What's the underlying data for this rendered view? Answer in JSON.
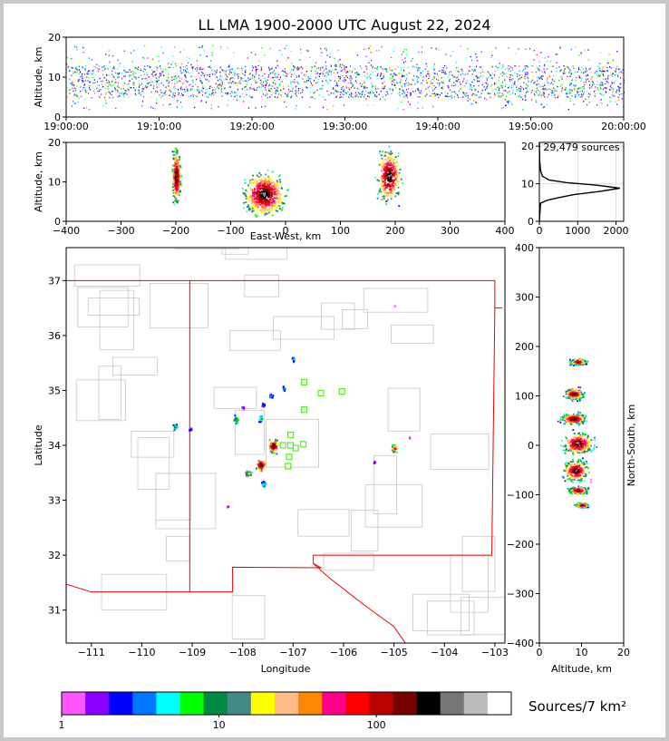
{
  "chart_data": {
    "title": "LL LMA 1900-2000 UTC August 22, 2024",
    "panels": [
      {
        "id": "altitude-time",
        "type": "scatter",
        "xlabel": "",
        "ylabel": "Altitude, km",
        "xticks": [
          "19:00:00",
          "19:10:00",
          "19:20:00",
          "19:30:00",
          "19:40:00",
          "19:50:00",
          "20:00:00"
        ],
        "xlim_minutes": [
          0,
          60
        ],
        "ylim": [
          0,
          20
        ],
        "yticks": [
          0,
          10,
          20
        ],
        "typical_altitude_km": [
          5,
          13
        ]
      },
      {
        "id": "altitude-eastwest",
        "type": "scatter",
        "xlabel": "East-West, km",
        "ylabel": "Altitude, km",
        "xlim": [
          -400,
          400
        ],
        "xticks": [
          -400,
          -300,
          -200,
          -100,
          0,
          100,
          200,
          300,
          400
        ],
        "ylim": [
          0,
          20
        ],
        "yticks": [
          0,
          10,
          20
        ],
        "clusters": [
          {
            "x": [
              -210,
              -190
            ],
            "y": [
              3,
              20
            ]
          },
          {
            "x": [
              -90,
              10
            ],
            "y": [
              0,
              14
            ]
          },
          {
            "x": [
              160,
              215
            ],
            "y": [
              3,
              20
            ]
          }
        ]
      },
      {
        "id": "altitude-histogram",
        "type": "line",
        "annotation": "29,479 sources",
        "xlim": [
          0,
          2200
        ],
        "xticks": [
          0,
          1000,
          2000
        ],
        "ylim": [
          0,
          21
        ],
        "yticks": [
          0,
          10,
          20
        ],
        "profile": [
          {
            "count": 0,
            "alt": 0
          },
          {
            "count": 30,
            "alt": 4.8
          },
          {
            "count": 200,
            "alt": 5.6
          },
          {
            "count": 500,
            "alt": 6.3
          },
          {
            "count": 900,
            "alt": 7.1
          },
          {
            "count": 1600,
            "alt": 8.0
          },
          {
            "count": 2100,
            "alt": 8.8
          },
          {
            "count": 1500,
            "alt": 9.6
          },
          {
            "count": 700,
            "alt": 10.3
          },
          {
            "count": 250,
            "alt": 11.0
          },
          {
            "count": 80,
            "alt": 12.0
          },
          {
            "count": 30,
            "alt": 13.5
          },
          {
            "count": 10,
            "alt": 16
          },
          {
            "count": 0,
            "alt": 21
          }
        ]
      },
      {
        "id": "plan-view",
        "type": "scatter",
        "xlabel": "Longitude",
        "ylabel": "Latitude",
        "xlim": [
          -111.5,
          -102.8
        ],
        "ylim": [
          30.4,
          37.6
        ],
        "xticks": [
          -111,
          -110,
          -109,
          -108,
          -107,
          -106,
          -105,
          -104,
          -103
        ],
        "yticks": [
          31,
          32,
          33,
          34,
          35,
          36,
          37
        ],
        "stations": [
          {
            "lon": -107.05,
            "lat": 34.19
          },
          {
            "lon": -107.2,
            "lat": 34.0
          },
          {
            "lon": -107.05,
            "lat": 34.0
          },
          {
            "lon": -106.95,
            "lat": 33.95
          },
          {
            "lon": -106.8,
            "lat": 34.02
          },
          {
            "lon": -107.08,
            "lat": 33.79
          },
          {
            "lon": -107.1,
            "lat": 33.62
          },
          {
            "lon": -106.78,
            "lat": 34.65
          },
          {
            "lon": -106.78,
            "lat": 35.15
          },
          {
            "lon": -106.45,
            "lat": 34.95
          },
          {
            "lon": -106.03,
            "lat": 34.98
          }
        ],
        "clusters": [
          {
            "lon": -109.35,
            "lat": 34.35,
            "size": 0.05,
            "n": 22
          },
          {
            "lon": -109.05,
            "lat": 34.3,
            "size": 0.03,
            "n": 10
          },
          {
            "lon": -108.15,
            "lat": 34.48,
            "size": 0.08,
            "n": 25
          },
          {
            "lon": -108.0,
            "lat": 34.7,
            "size": 0.03,
            "n": 6
          },
          {
            "lon": -107.65,
            "lat": 34.5,
            "size": 0.07,
            "n": 20
          },
          {
            "lon": -107.6,
            "lat": 34.75,
            "size": 0.05,
            "n": 10
          },
          {
            "lon": -107.45,
            "lat": 34.9,
            "size": 0.05,
            "n": 14
          },
          {
            "lon": -107.2,
            "lat": 35.05,
            "size": 0.05,
            "n": 12
          },
          {
            "lon": -107.0,
            "lat": 35.58,
            "size": 0.05,
            "n": 14
          },
          {
            "lon": -107.9,
            "lat": 33.5,
            "size": 0.09,
            "n": 30
          },
          {
            "lon": -107.65,
            "lat": 33.65,
            "size": 0.12,
            "n": 60
          },
          {
            "lon": -107.4,
            "lat": 34.0,
            "size": 0.13,
            "n": 70
          },
          {
            "lon": -107.6,
            "lat": 33.3,
            "size": 0.06,
            "n": 18
          },
          {
            "lon": -108.3,
            "lat": 32.9,
            "size": 0.03,
            "n": 6
          },
          {
            "lon": -105.0,
            "lat": 33.95,
            "size": 0.08,
            "n": 40
          },
          {
            "lon": -105.4,
            "lat": 33.7,
            "size": 0.03,
            "n": 6
          },
          {
            "lon": -104.7,
            "lat": 34.15,
            "size": 0.02,
            "n": 4
          },
          {
            "lon": -105.0,
            "lat": 36.55,
            "size": 0.01,
            "n": 2
          }
        ]
      },
      {
        "id": "northsouth-altitude",
        "type": "scatter",
        "xlabel": "Altitude, km",
        "ylabel": "North-South, km",
        "xlim": [
          0,
          20
        ],
        "xticks": [
          0,
          10,
          20
        ],
        "ylim": [
          -400,
          400
        ],
        "yticks": [
          -400,
          -300,
          -200,
          -100,
          0,
          100,
          200,
          300,
          400
        ],
        "clusters": [
          {
            "ns": 170,
            "alt": 9,
            "ns_spread": 8,
            "alt_spread": 2.5
          },
          {
            "ns": 105,
            "alt": 8,
            "ns_spread": 15,
            "alt_spread": 3
          },
          {
            "ns": 55,
            "alt": 8,
            "ns_spread": 15,
            "alt_spread": 4
          },
          {
            "ns": 5,
            "alt": 9,
            "ns_spread": 30,
            "alt_spread": 5
          },
          {
            "ns": -50,
            "alt": 8.5,
            "ns_spread": 30,
            "alt_spread": 4
          },
          {
            "ns": -90,
            "alt": 9,
            "ns_spread": 10,
            "alt_spread": 3
          },
          {
            "ns": -120,
            "alt": 10,
            "ns_spread": 6,
            "alt_spread": 2
          }
        ]
      }
    ],
    "colorbar": {
      "label": "Sources/7 km²",
      "ticks": [
        "1",
        "10",
        "100"
      ],
      "colors": [
        "#ff55ff",
        "#8800ff",
        "#0000ff",
        "#0077ff",
        "#00ffff",
        "#00ff00",
        "#008844",
        "#448888",
        "#ffff00",
        "#ffbb88",
        "#ff8800",
        "#ff0088",
        "#ff0000",
        "#bb0000",
        "#770000",
        "#000000",
        "#777777",
        "#bbbbbb",
        "#ffffff"
      ]
    }
  }
}
